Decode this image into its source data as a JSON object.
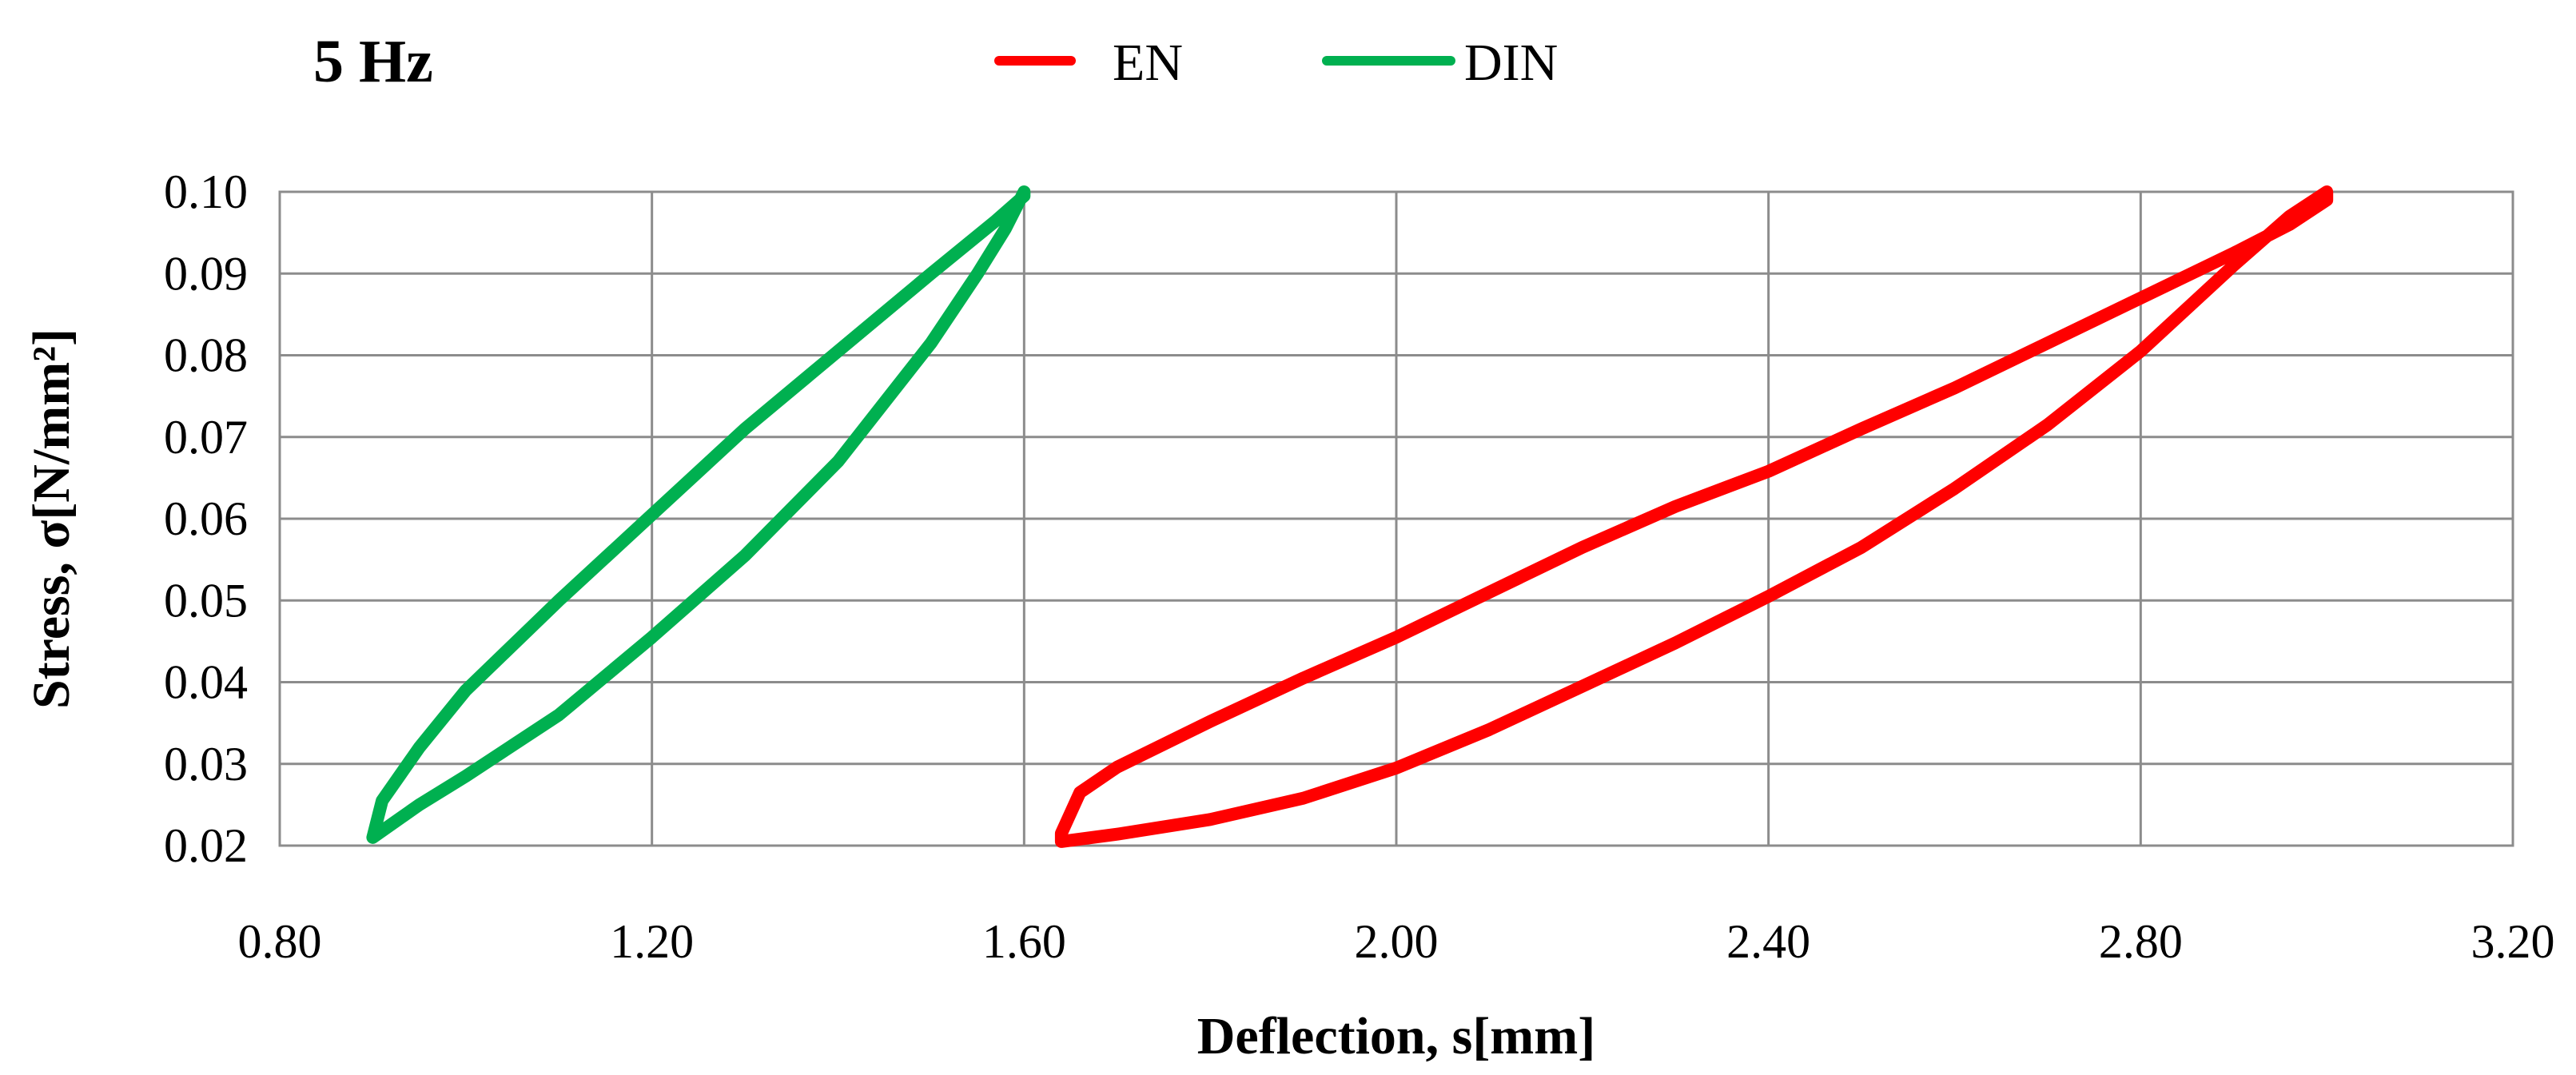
{
  "chart_data": {
    "type": "line",
    "title": "5 Hz",
    "xlabel": "Deflection, s[mm]",
    "ylabel": "Stress, σ[N/mm²]",
    "xlim": [
      0.8,
      3.2
    ],
    "ylim": [
      0.02,
      0.1
    ],
    "grid": true,
    "legend_position": "top-center",
    "x_ticks": [
      "0.80",
      "1.20",
      "1.60",
      "2.00",
      "2.40",
      "2.80",
      "3.20"
    ],
    "y_ticks": [
      "0.10",
      "0.09",
      "0.08",
      "0.07",
      "0.06",
      "0.05",
      "0.04",
      "0.03",
      "0.02"
    ],
    "series": [
      {
        "name": "EN",
        "color": "#ff0000",
        "x": [
          1.64,
          1.7,
          1.8,
          1.9,
          2.0,
          2.1,
          2.2,
          2.3,
          2.4,
          2.5,
          2.6,
          2.7,
          2.8,
          2.9,
          2.96,
          3.0,
          3.0,
          2.96,
          2.9,
          2.8,
          2.7,
          2.6,
          2.5,
          2.4,
          2.3,
          2.2,
          2.1,
          2.0,
          1.9,
          1.8,
          1.7,
          1.66,
          1.64
        ],
        "y": [
          0.0205,
          0.0214,
          0.0232,
          0.0258,
          0.0295,
          0.0342,
          0.0395,
          0.0448,
          0.0505,
          0.0565,
          0.0637,
          0.0715,
          0.0805,
          0.091,
          0.097,
          0.1,
          0.099,
          0.096,
          0.0925,
          0.087,
          0.0815,
          0.076,
          0.071,
          0.0658,
          0.0615,
          0.0565,
          0.051,
          0.0455,
          0.0405,
          0.0352,
          0.0296,
          0.0265,
          0.0215
        ]
      },
      {
        "name": "DIN",
        "color": "#00b050",
        "x": [
          0.9,
          0.95,
          1.0,
          1.1,
          1.2,
          1.3,
          1.4,
          1.5,
          1.55,
          1.58,
          1.6,
          1.6,
          1.57,
          1.5,
          1.4,
          1.3,
          1.2,
          1.1,
          1.0,
          0.95,
          0.91,
          0.9
        ],
        "y": [
          0.021,
          0.025,
          0.0285,
          0.036,
          0.0455,
          0.0555,
          0.067,
          0.0815,
          0.09,
          0.0955,
          0.1,
          0.0995,
          0.0965,
          0.09,
          0.0805,
          0.071,
          0.0605,
          0.05,
          0.039,
          0.032,
          0.0255,
          0.021
        ]
      }
    ]
  }
}
